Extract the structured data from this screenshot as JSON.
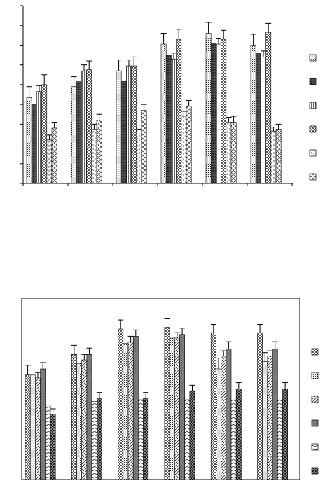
{
  "chart_data": [
    {
      "type": "bar",
      "title": "",
      "xlabel": "",
      "ylabel": "",
      "ylim": [
        0,
        9
      ],
      "grid": false,
      "legend": "right",
      "error_bars": true,
      "bordered": false,
      "categories": [
        "",
        "",
        "",
        "",
        "",
        ""
      ],
      "series": [
        {
          "pattern": "dots",
          "values": [
            4.35,
            4.9,
            5.7,
            7.05,
            7.6,
            7.0
          ],
          "errors": [
            0.55,
            0.5,
            0.55,
            0.55,
            0.55,
            0.55
          ]
        },
        {
          "pattern": "dense-cross",
          "values": [
            4.0,
            5.15,
            5.2,
            6.5,
            7.1,
            6.6
          ],
          "errors": [
            0.0,
            0.0,
            0.0,
            0.0,
            0.0,
            0.0
          ]
        },
        {
          "pattern": "vlines",
          "values": [
            4.65,
            5.7,
            5.95,
            6.3,
            7.05,
            6.4
          ],
          "errors": [
            0.3,
            0.3,
            0.3,
            0.3,
            0.3,
            0.3
          ]
        },
        {
          "pattern": "checker",
          "values": [
            5.0,
            5.75,
            5.95,
            7.3,
            7.3,
            7.65
          ],
          "errors": [
            0.5,
            0.45,
            0.45,
            0.5,
            0.45,
            0.45
          ]
        },
        {
          "pattern": "dashed",
          "values": [
            2.2,
            2.75,
            2.5,
            3.4,
            3.1,
            2.65
          ],
          "errors": [
            0.25,
            0.25,
            0.25,
            0.25,
            0.25,
            0.2
          ]
        },
        {
          "pattern": "zigzag",
          "values": [
            2.8,
            3.2,
            3.7,
            3.9,
            3.1,
            2.75
          ],
          "errors": [
            0.3,
            0.3,
            0.3,
            0.3,
            0.3,
            0.25
          ]
        }
      ]
    },
    {
      "type": "bar",
      "title": "",
      "xlabel": "",
      "ylabel": "",
      "ylim": [
        0,
        10
      ],
      "grid": false,
      "legend": "right",
      "error_bars": true,
      "bordered": true,
      "categories": [
        "",
        "",
        "",
        "",
        "",
        ""
      ],
      "series": [
        {
          "pattern": "checker",
          "values": [
            5.8,
            6.9,
            8.3,
            8.4,
            8.1,
            8.1
          ],
          "errors": [
            0.5,
            0.5,
            0.5,
            0.5,
            0.45,
            0.45
          ]
        },
        {
          "pattern": "dots",
          "values": [
            5.8,
            6.4,
            7.5,
            7.8,
            6.1,
            6.5
          ],
          "errors": [
            0.0,
            0.0,
            0.0,
            0.0,
            0.6,
            0.5
          ]
        },
        {
          "pattern": "diag",
          "values": [
            5.6,
            6.6,
            7.6,
            7.8,
            6.8,
            6.8
          ],
          "errors": [
            0.3,
            0.3,
            0.3,
            0.3,
            0.3,
            0.3
          ]
        },
        {
          "pattern": "solid-gray",
          "values": [
            6.1,
            6.9,
            7.9,
            8.0,
            7.2,
            7.2
          ],
          "errors": [
            0.35,
            0.35,
            0.35,
            0.35,
            0.4,
            0.4
          ]
        },
        {
          "pattern": "wave",
          "values": [
            4.1,
            4.3,
            4.4,
            4.4,
            4.5,
            4.5
          ],
          "errors": [
            0.0,
            0.0,
            0.0,
            0.0,
            0.0,
            0.0
          ]
        },
        {
          "pattern": "dark-check",
          "values": [
            3.6,
            4.5,
            4.5,
            4.9,
            5.0,
            5.0
          ],
          "errors": [
            0.3,
            0.3,
            0.3,
            0.3,
            0.35,
            0.35
          ]
        }
      ]
    }
  ]
}
